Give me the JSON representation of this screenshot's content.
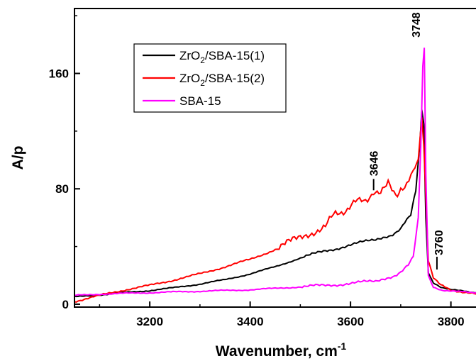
{
  "chart_data": {
    "type": "line",
    "xlabel": "Wavenumber, cm",
    "xlabel_sup": "-1",
    "ylabel": "A/p",
    "xlim": [
      3050,
      3850
    ],
    "ylim": [
      -2,
      205
    ],
    "xticks": [
      3200,
      3400,
      3600,
      3800
    ],
    "yticks": [
      0,
      80,
      160
    ],
    "legend_position": "top-left",
    "series": [
      {
        "name": "ZrO2/SBA-15(1)",
        "legend_parts": [
          "ZrO",
          "2",
          "/SBA-15(1)"
        ],
        "color": "#000000",
        "x": [
          3050,
          3100,
          3150,
          3200,
          3250,
          3300,
          3350,
          3400,
          3450,
          3500,
          3550,
          3600,
          3650,
          3680,
          3700,
          3720,
          3730,
          3738,
          3742,
          3746,
          3750,
          3755,
          3765,
          3780,
          3800,
          3850
        ],
        "y": [
          5,
          6.5,
          8,
          9.5,
          11.5,
          14,
          17,
          21,
          26,
          32,
          37,
          41,
          45,
          48,
          52,
          62,
          78,
          110,
          135,
          125,
          60,
          22,
          15,
          12,
          10,
          8
        ]
      },
      {
        "name": "ZrO2/SBA-15(2)",
        "legend_parts": [
          "ZrO",
          "2",
          "/SBA-15(2)"
        ],
        "color": "#ff0000",
        "x": [
          3050,
          3100,
          3150,
          3200,
          3250,
          3300,
          3350,
          3400,
          3450,
          3500,
          3550,
          3570,
          3590,
          3610,
          3630,
          3646,
          3660,
          3675,
          3690,
          3700,
          3712,
          3725,
          3735,
          3742,
          3746,
          3750,
          3755,
          3765,
          3780,
          3800,
          3850
        ],
        "y": [
          2,
          6,
          10,
          13,
          17,
          21,
          26,
          31,
          38,
          46,
          55,
          62,
          66,
          70,
          73,
          78,
          80,
          87,
          77,
          80,
          85,
          90,
          100,
          130,
          110,
          75,
          30,
          18,
          13,
          10,
          7
        ]
      },
      {
        "name": "SBA-15",
        "legend_parts": [
          "SBA-15"
        ],
        "color": "#ff00ff",
        "x": [
          3050,
          3100,
          3150,
          3200,
          3250,
          3300,
          3350,
          3400,
          3450,
          3500,
          3550,
          3600,
          3650,
          3680,
          3700,
          3715,
          3725,
          3735,
          3740,
          3744,
          3747,
          3750,
          3755,
          3765,
          3780,
          3800,
          3850
        ],
        "y": [
          6,
          7,
          7.5,
          8,
          8.5,
          9,
          9.5,
          10,
          11,
          12,
          13,
          14.5,
          16,
          19,
          22,
          27,
          34,
          60,
          110,
          165,
          178,
          90,
          20,
          12,
          10,
          9,
          8
        ]
      }
    ],
    "annotations": [
      {
        "text": "3748",
        "x": 3748,
        "y": 178
      },
      {
        "text": "3646",
        "x": 3646,
        "y": 78
      },
      {
        "text": "3760",
        "x": 3775,
        "y": 28
      }
    ]
  }
}
